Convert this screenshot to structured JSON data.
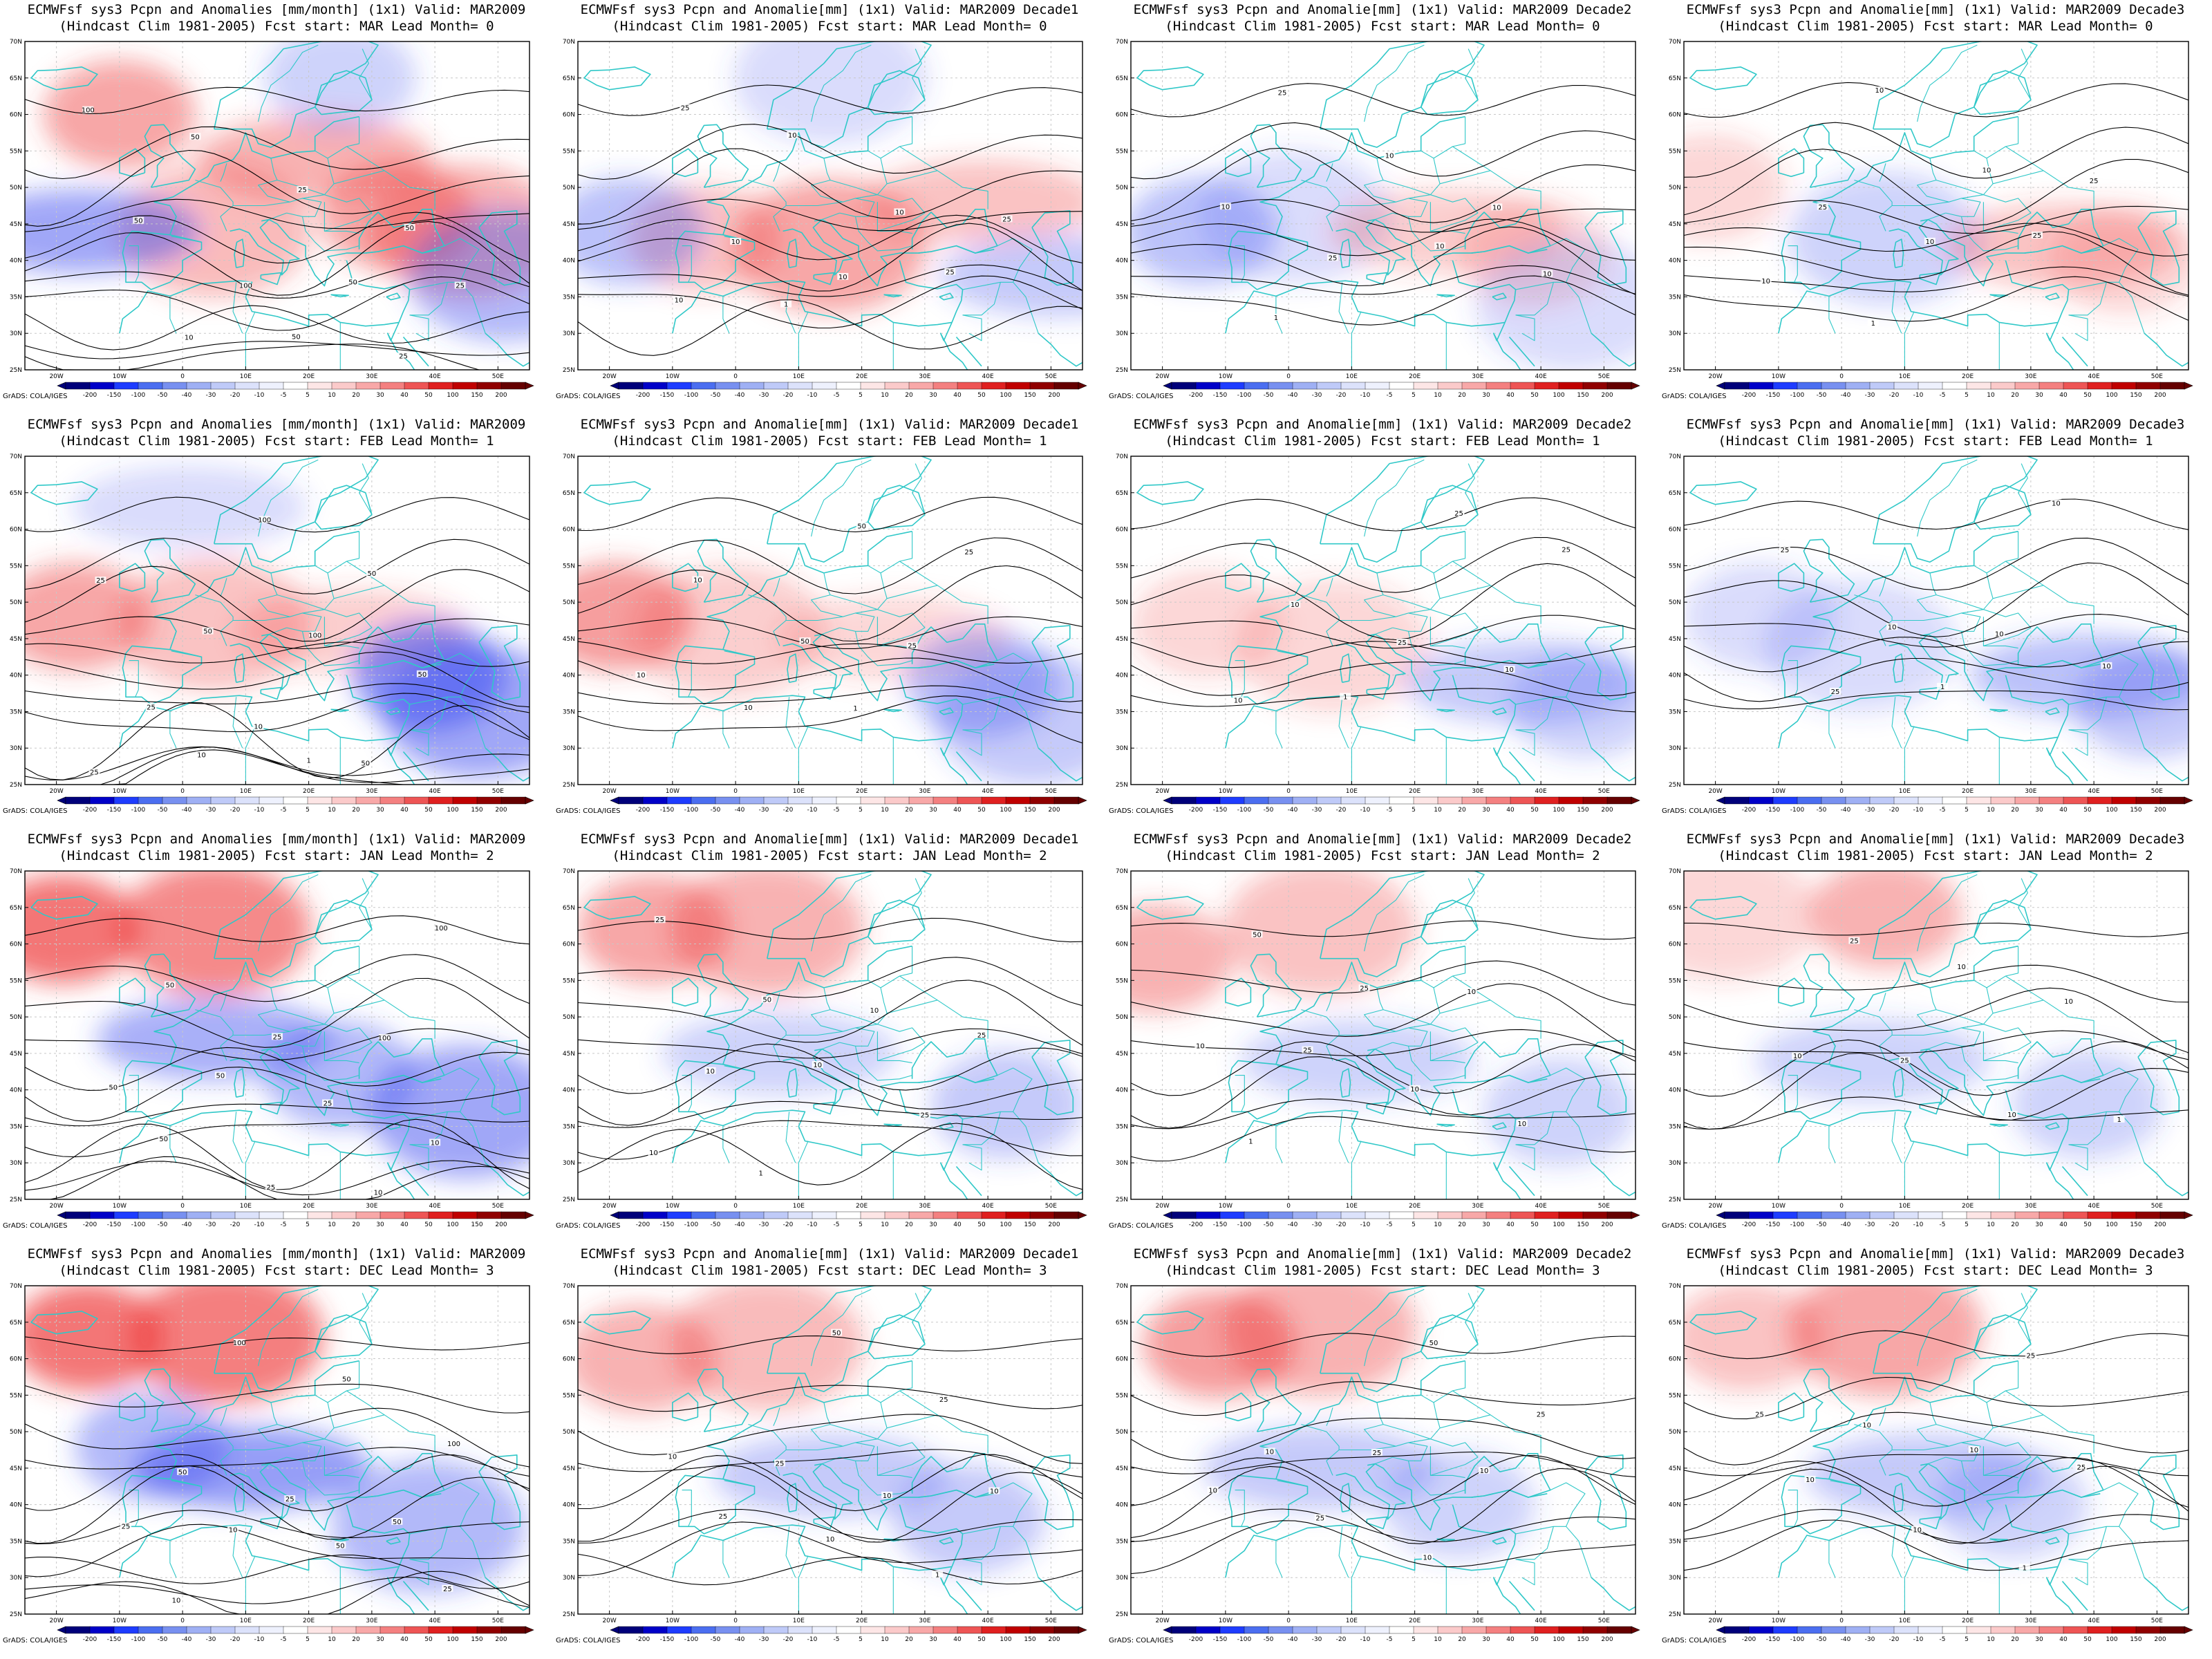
{
  "figure": {
    "credit": "GrADS: COLA/IGES",
    "lon_ticks": [
      "20W",
      "10W",
      "0",
      "10E",
      "20E",
      "30E",
      "40E",
      "50E"
    ],
    "lat_ticks": [
      "70N",
      "65N",
      "60N",
      "55N",
      "50N",
      "45N",
      "40N",
      "35N",
      "30N",
      "25N"
    ],
    "colorbar": {
      "labels": [
        "-200",
        "-150",
        "-100",
        "-50",
        "-40",
        "-30",
        "-20",
        "-10",
        "-5",
        "5",
        "10",
        "20",
        "30",
        "40",
        "50",
        "100",
        "150",
        "200"
      ],
      "colors": [
        "#00007a",
        "#0000c8",
        "#1e3cff",
        "#4b6ef0",
        "#7890f0",
        "#9fb0f4",
        "#bfcaf8",
        "#dce2fb",
        "#eef1fd",
        "#ffffff",
        "#fde6e6",
        "#fbcaca",
        "#f8a8a8",
        "#f48080",
        "#ee5555",
        "#e02020",
        "#c00000",
        "#900000",
        "#650000"
      ]
    },
    "coast_color": "#30c8c8",
    "contour_color": "#000000",
    "panels": [
      {
        "title1": "ECMWFsf sys3  Pcpn and Anomalies [mm/month] (1x1) Valid: MAR2009",
        "title2": "(Hindcast Clim 1981-2005) Fcst start: MAR  Lead Month= 0",
        "contours": [
          "100",
          "50",
          "25",
          "50",
          "50",
          "100",
          "50",
          "25",
          "10",
          "50",
          "25"
        ],
        "anom": [
          [
            60,
            150,
            0.45,
            "pos"
          ],
          [
            44,
            300,
            0.35,
            "pos"
          ],
          [
            54,
            460,
            0.4,
            "pos"
          ],
          [
            46,
            590,
            0.45,
            "pos"
          ],
          [
            44,
            700,
            0.4,
            "pos"
          ],
          [
            44,
            90,
            0.5,
            "neg"
          ],
          [
            65,
            500,
            0.25,
            "neg"
          ],
          [
            38,
            760,
            0.4,
            "neg"
          ]
        ]
      },
      {
        "title1": "ECMWFsf sys3  Pcpn and Anomalie[mm] (1x1) Valid: MAR2009 Decade1",
        "title2": "(Hindcast Clim 1981-2005) Fcst start: MAR  Lead Month= 0",
        "contours": [
          "25",
          "10",
          "10",
          "25",
          "10",
          "10",
          "25",
          "10",
          "1"
        ],
        "anom": [
          [
            43,
            200,
            0.3,
            "pos"
          ],
          [
            42,
            400,
            0.45,
            "pos"
          ],
          [
            48,
            640,
            0.3,
            "pos"
          ],
          [
            44,
            80,
            0.35,
            "neg"
          ],
          [
            65,
            400,
            0.2,
            "neg"
          ],
          [
            38,
            760,
            0.3,
            "neg"
          ]
        ]
      },
      {
        "title1": "ECMWFsf sys3  Pcpn and Anomalie[mm] (1x1) Valid: MAR2009 Decade2",
        "title2": "(Hindcast Clim 1981-2005) Fcst start: MAR  Lead Month= 0",
        "contours": [
          "25",
          "10",
          "10",
          "10",
          "25",
          "10",
          "10",
          "1"
        ],
        "anom": [
          [
            44,
            110,
            0.35,
            "neg"
          ],
          [
            46,
            260,
            0.2,
            "neg"
          ],
          [
            44,
            500,
            0.25,
            "pos"
          ],
          [
            41,
            640,
            0.2,
            "pos"
          ],
          [
            34,
            700,
            0.2,
            "neg"
          ]
        ]
      },
      {
        "title1": "ECMWFsf sys3  Pcpn and Anomalie[mm] (1x1) Valid: MAR2009 Decade3",
        "title2": "(Hindcast Clim 1981-2005) Fcst start: MAR  Lead Month= 0",
        "contours": [
          "10",
          "10",
          "25",
          "25",
          "10",
          "25",
          "10",
          "1"
        ],
        "anom": [
          [
            50,
            40,
            0.2,
            "pos"
          ],
          [
            43,
            320,
            0.25,
            "neg"
          ],
          [
            42,
            600,
            0.3,
            "pos"
          ],
          [
            40,
            700,
            0.2,
            "pos"
          ]
        ]
      },
      {
        "title1": "ECMWFsf sys3  Pcpn and Anomalies [mm/month] (1x1) Valid: MAR2009",
        "title2": "(Hindcast Clim 1981-2005) Fcst start: FEB  Lead Month= 1",
        "contours": [
          "100",
          "50",
          "25",
          "50",
          "100",
          "50",
          "25",
          "10",
          "50",
          "25",
          "10",
          "1"
        ],
        "anom": [
          [
            48,
            80,
            0.45,
            "pos"
          ],
          [
            47,
            300,
            0.3,
            "pos"
          ],
          [
            46,
            520,
            0.25,
            "pos"
          ],
          [
            40,
            640,
            0.6,
            "neg"
          ],
          [
            35,
            720,
            0.5,
            "neg"
          ],
          [
            63,
            260,
            0.2,
            "neg"
          ]
        ]
      },
      {
        "title1": "ECMWFsf sys3  Pcpn and Anomalie[mm] (1x1) Valid: MAR2009 Decade1",
        "title2": "(Hindcast Clim 1981-2005) Fcst start: FEB  Lead Month= 1",
        "contours": [
          "50",
          "25",
          "10",
          "50",
          "25",
          "10",
          "10",
          "1"
        ],
        "anom": [
          [
            48,
            60,
            0.5,
            "pos"
          ],
          [
            46,
            240,
            0.25,
            "pos"
          ],
          [
            45,
            500,
            0.2,
            "pos"
          ],
          [
            39,
            640,
            0.35,
            "neg"
          ],
          [
            34,
            720,
            0.3,
            "neg"
          ]
        ]
      },
      {
        "title1": "ECMWFsf sys3  Pcpn and Anomalie[mm] (1x1) Valid: MAR2009 Decade2",
        "title2": "(Hindcast Clim 1981-2005) Fcst start: FEB  Lead Month= 1",
        "contours": [
          "25",
          "25",
          "10",
          "25",
          "10",
          "10",
          "1"
        ],
        "anom": [
          [
            47,
            120,
            0.2,
            "pos"
          ],
          [
            44,
            320,
            0.2,
            "pos"
          ],
          [
            39,
            620,
            0.3,
            "neg"
          ],
          [
            36,
            720,
            0.25,
            "neg"
          ]
        ]
      },
      {
        "title1": "ECMWFsf sys3  Pcpn and Anomalie[mm] (1x1) Valid: MAR2009 Decade3",
        "title2": "(Hindcast Clim 1981-2005) Fcst start: FEB  Lead Month= 1",
        "contours": [
          "10",
          "25",
          "10",
          "10",
          "10",
          "25",
          "1"
        ],
        "anom": [
          [
            48,
            120,
            0.2,
            "neg"
          ],
          [
            44,
            280,
            0.2,
            "neg"
          ],
          [
            40,
            640,
            0.35,
            "neg"
          ],
          [
            36,
            740,
            0.3,
            "neg"
          ]
        ]
      },
      {
        "title1": "ECMWFsf sys3  Pcpn and Anomalies [mm/month] (1x1) Valid: MAR2009",
        "title2": "(Hindcast Clim 1981-2005) Fcst start: JAN  Lead Month= 2",
        "contours": [
          "100",
          "50",
          "25",
          "100",
          "50",
          "50",
          "25",
          "10",
          "50",
          "25",
          "10"
        ],
        "anom": [
          [
            62,
            60,
            0.7,
            "pos"
          ],
          [
            62,
            300,
            0.6,
            "pos"
          ],
          [
            47,
            300,
            0.45,
            "neg"
          ],
          [
            42,
            500,
            0.4,
            "neg"
          ],
          [
            37,
            700,
            0.5,
            "neg"
          ]
        ]
      },
      {
        "title1": "ECMWFsf sys3  Pcpn and Anomalie[mm] (1x1) Valid: MAR2009 Decade1",
        "title2": "(Hindcast Clim 1981-2005) Fcst start: JAN  Lead Month= 2",
        "contours": [
          "25",
          "50",
          "10",
          "25",
          "10",
          "10",
          "25",
          "10",
          "1"
        ],
        "anom": [
          [
            62,
            120,
            0.45,
            "pos"
          ],
          [
            62,
            300,
            0.4,
            "pos"
          ],
          [
            45,
            320,
            0.25,
            "neg"
          ],
          [
            38,
            680,
            0.3,
            "neg"
          ]
        ]
      },
      {
        "title1": "ECMWFsf sys3  Pcpn and Anomalie[mm] (1x1) Valid: MAR2009 Decade2",
        "title2": "(Hindcast Clim 1981-2005) Fcst start: JAN  Lead Month= 2",
        "contours": [
          "50",
          "25",
          "10",
          "10",
          "25",
          "10",
          "10",
          "1"
        ],
        "anom": [
          [
            58,
            40,
            0.4,
            "pos"
          ],
          [
            62,
            300,
            0.3,
            "pos"
          ],
          [
            44,
            360,
            0.25,
            "neg"
          ],
          [
            37,
            680,
            0.25,
            "neg"
          ]
        ]
      },
      {
        "title1": "ECMWFsf sys3  Pcpn and Anomalie[mm] (1x1) Valid: MAR2009 Decade3",
        "title2": "(Hindcast Clim 1981-2005) Fcst start: JAN  Lead Month= 2",
        "contours": [
          "25",
          "10",
          "10",
          "10",
          "25",
          "10",
          "1"
        ],
        "anom": [
          [
            64,
            320,
            0.4,
            "pos"
          ],
          [
            64,
            60,
            0.2,
            "pos"
          ],
          [
            44,
            300,
            0.25,
            "neg"
          ],
          [
            38,
            640,
            0.25,
            "neg"
          ]
        ]
      },
      {
        "title1": "ECMWFsf sys3  Pcpn and Anomalies [mm/month] (1x1) Valid: MAR2009",
        "title2": "(Hindcast Clim 1981-2005) Fcst start: DEC  Lead Month= 3",
        "contours": [
          "100",
          "50",
          "100",
          "50",
          "25",
          "50",
          "25",
          "10",
          "50",
          "25",
          "10"
        ],
        "anom": [
          [
            63,
            100,
            0.7,
            "pos"
          ],
          [
            63,
            320,
            0.65,
            "pos"
          ],
          [
            45,
            360,
            0.55,
            "neg"
          ],
          [
            48,
            200,
            0.4,
            "neg"
          ],
          [
            37,
            640,
            0.4,
            "neg"
          ]
        ]
      },
      {
        "title1": "ECMWFsf sys3  Pcpn and Anomalie[mm] (1x1) Valid: MAR2009 Decade1",
        "title2": "(Hindcast Clim 1981-2005) Fcst start: DEC  Lead Month= 3",
        "contours": [
          "50",
          "25",
          "10",
          "25",
          "10",
          "10",
          "25",
          "10",
          "1"
        ],
        "anom": [
          [
            60,
            100,
            0.4,
            "pos"
          ],
          [
            62,
            300,
            0.35,
            "pos"
          ],
          [
            44,
            400,
            0.3,
            "neg"
          ],
          [
            38,
            620,
            0.3,
            "neg"
          ]
        ]
      },
      {
        "title1": "ECMWFsf sys3  Pcpn and Anomalie[mm] (1x1) Valid: MAR2009 Decade2",
        "title2": "(Hindcast Clim 1981-2005) Fcst start: DEC  Lead Month= 3",
        "contours": [
          "50",
          "25",
          "10",
          "25",
          "10",
          "10",
          "25",
          "10"
        ],
        "anom": [
          [
            62,
            140,
            0.5,
            "pos"
          ],
          [
            64,
            300,
            0.4,
            "pos"
          ],
          [
            45,
            300,
            0.3,
            "neg"
          ],
          [
            40,
            520,
            0.25,
            "neg"
          ]
        ]
      },
      {
        "title1": "ECMWFsf sys3  Pcpn and Anomalie[mm] (1x1) Valid: MAR2009 Decade3",
        "title2": "(Hindcast Clim 1981-2005) Fcst start: DEC  Lead Month= 3",
        "contours": [
          "25",
          "25",
          "10",
          "10",
          "25",
          "10",
          "10",
          "1"
        ],
        "anom": [
          [
            63,
            100,
            0.3,
            "pos"
          ],
          [
            64,
            320,
            0.45,
            "pos"
          ],
          [
            44,
            380,
            0.3,
            "neg"
          ],
          [
            40,
            520,
            0.25,
            "neg"
          ]
        ]
      }
    ]
  }
}
